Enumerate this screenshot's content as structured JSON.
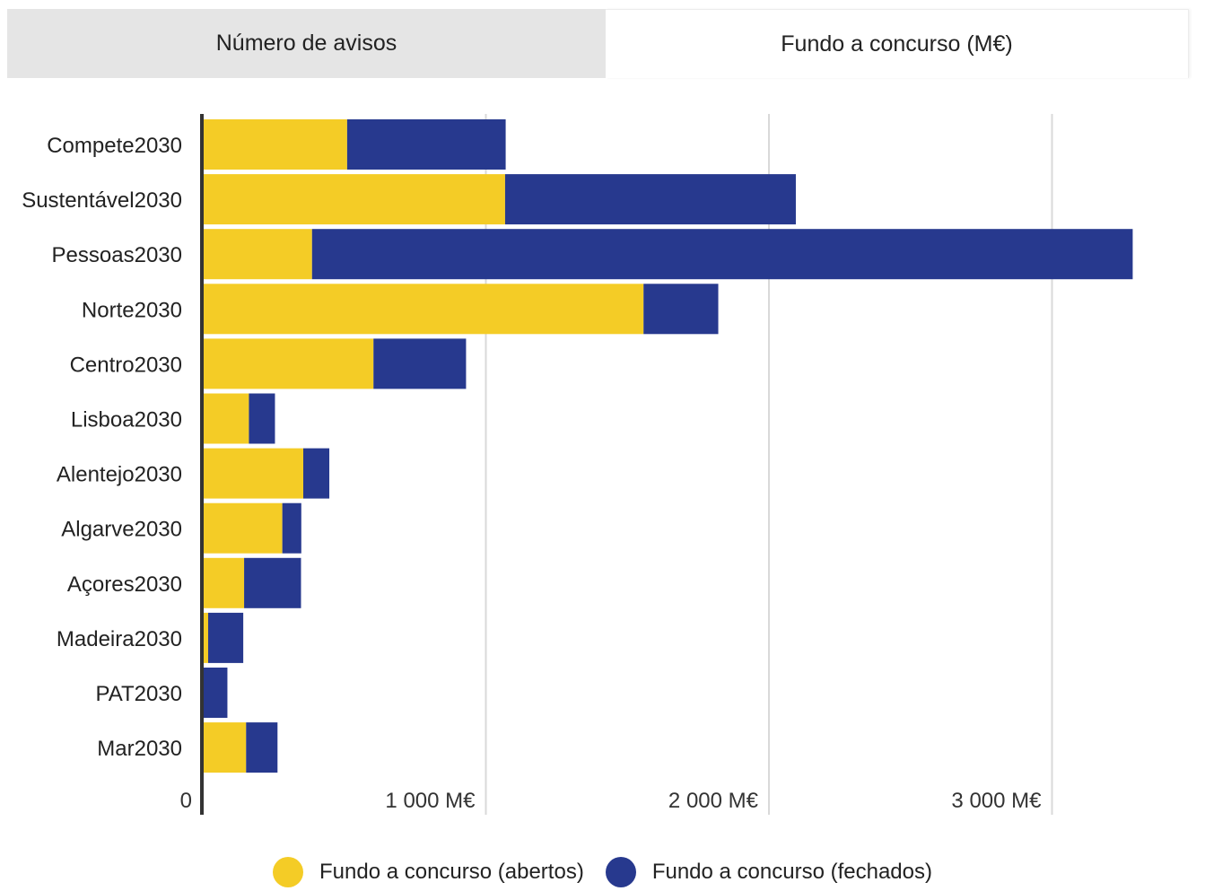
{
  "tabs": [
    {
      "label": "Número de avisos",
      "active": false
    },
    {
      "label": "Fundo a concurso (M€)",
      "active": true
    }
  ],
  "colors": {
    "abertos": "#F4CC26",
    "fechados": "#27398E",
    "grid": "#d9d9d9",
    "axis": "#333333"
  },
  "chart_data": {
    "type": "bar",
    "orientation": "horizontal",
    "stacked": true,
    "categories": [
      "Compete2030",
      "Sustentável2030",
      "Pessoas2030",
      "Norte2030",
      "Centro2030",
      "Lisboa2030",
      "Alentejo2030",
      "Algarve2030",
      "Açores2030",
      "Madeira2030",
      "PAT2030",
      "Mar2030"
    ],
    "series": [
      {
        "name": "Fundo a concurso (abertos)",
        "color": "#F4CC26",
        "values": [
          510,
          1068,
          386,
          1557,
          603,
          163,
          355,
          281,
          146,
          19,
          0,
          153
        ]
      },
      {
        "name": "Fundo a concurso (fechados)",
        "color": "#27398E",
        "values": [
          560,
          1027,
          2899,
          264,
          327,
          92,
          92,
          67,
          201,
          124,
          87,
          111
        ]
      }
    ],
    "xlim": [
      0,
      3400
    ],
    "x_ticks": [
      0,
      1000,
      2000,
      3000
    ],
    "x_tick_labels": [
      "0",
      "1 000 M€",
      "2 000 M€",
      "3 000 M€"
    ],
    "grid": true,
    "legend_position": "bottom",
    "title": "",
    "xlabel": "",
    "ylabel": ""
  }
}
